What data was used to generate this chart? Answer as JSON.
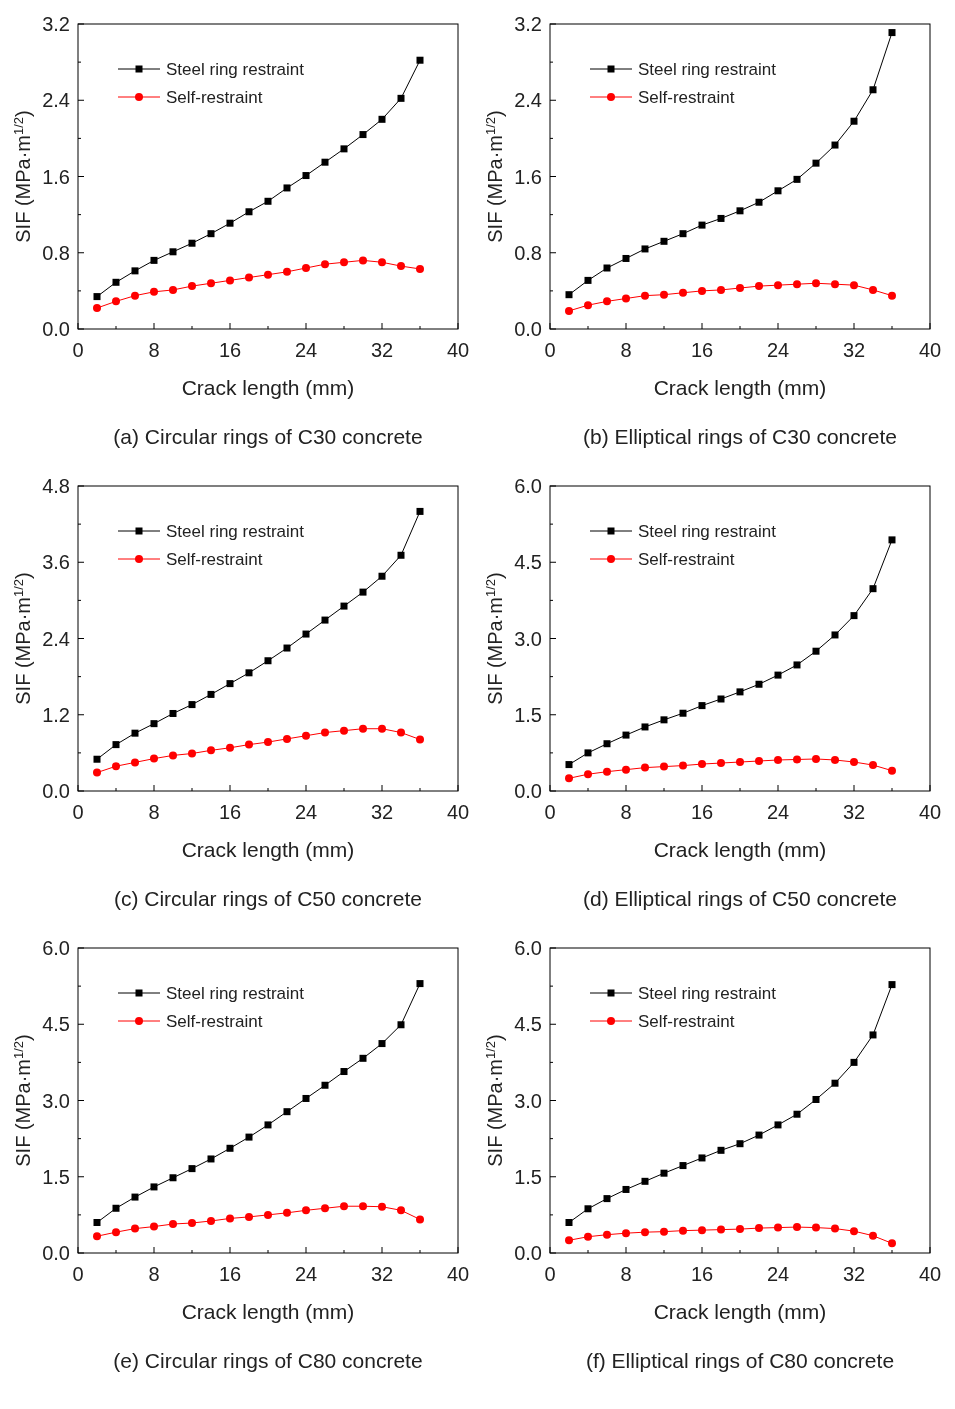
{
  "chart_data": [
    {
      "type": "line",
      "title": "(a) Circular rings of C30 concrete",
      "xlabel": "Crack length (mm)",
      "ylabel": "SIF (MPa·m$^{1/2}$)",
      "x": [
        2,
        4,
        6,
        8,
        10,
        12,
        14,
        16,
        18,
        20,
        22,
        24,
        26,
        28,
        30,
        32,
        34,
        36
      ],
      "xlim": [
        0,
        40
      ],
      "xticks": [
        0,
        {
          "value": 4,
          "label": null
        },
        8,
        {
          "value": 12,
          "label": null
        },
        16,
        {
          "value": 20,
          "label": null
        },
        24,
        {
          "value": 28,
          "label": null
        },
        32,
        {
          "value": 36,
          "label": null
        },
        40
      ],
      "ylim": [
        0,
        3.2
      ],
      "yticks": [
        {
          "value": 0,
          "label": "0.0"
        },
        {
          "value": 0.4,
          "label": null
        },
        0.8,
        {
          "value": 1.2,
          "label": null
        },
        1.6,
        {
          "value": 2,
          "label": null
        },
        2.4,
        {
          "value": 2.8,
          "label": null
        },
        3.2
      ],
      "legend": "top left",
      "grid": false,
      "series": [
        {
          "name": "Steel ring restraint",
          "color": "#000000",
          "marker": "square",
          "values": [
            0.34,
            0.49,
            0.61,
            0.72,
            0.81,
            0.9,
            1.0,
            1.11,
            1.23,
            1.34,
            1.48,
            1.61,
            1.75,
            1.89,
            2.04,
            2.2,
            2.42,
            2.82
          ]
        },
        {
          "name": "Self-restraint",
          "color": "#ff0000",
          "marker": "circle",
          "values": [
            0.22,
            0.29,
            0.35,
            0.39,
            0.41,
            0.45,
            0.48,
            0.51,
            0.54,
            0.57,
            0.6,
            0.64,
            0.68,
            0.7,
            0.72,
            0.7,
            0.66,
            0.63
          ]
        }
      ]
    },
    {
      "type": "line",
      "title": "(b) Elliptical rings of C30 concrete",
      "xlabel": "Crack length (mm)",
      "ylabel": "SIF (MPa·m$^{1/2}$)",
      "x": [
        2,
        4,
        6,
        8,
        10,
        12,
        14,
        16,
        18,
        20,
        22,
        24,
        26,
        28,
        30,
        32,
        34,
        36
      ],
      "xlim": [
        0,
        40
      ],
      "xticks": [
        0,
        {
          "value": 4,
          "label": null
        },
        8,
        {
          "value": 12,
          "label": null
        },
        16,
        {
          "value": 20,
          "label": null
        },
        24,
        {
          "value": 28,
          "label": null
        },
        32,
        {
          "value": 36,
          "label": null
        },
        40
      ],
      "ylim": [
        0,
        3.2
      ],
      "yticks": [
        {
          "value": 0,
          "label": "0.0"
        },
        {
          "value": 0.4,
          "label": null
        },
        0.8,
        {
          "value": 1.2,
          "label": null
        },
        1.6,
        {
          "value": 2,
          "label": null
        },
        2.4,
        {
          "value": 2.8,
          "label": null
        },
        3.2
      ],
      "legend": "top left",
      "grid": false,
      "series": [
        {
          "name": "Steel ring restraint",
          "color": "#000000",
          "marker": "square",
          "values": [
            0.36,
            0.51,
            0.64,
            0.74,
            0.84,
            0.92,
            1.0,
            1.09,
            1.16,
            1.24,
            1.33,
            1.45,
            1.57,
            1.74,
            1.93,
            2.18,
            2.51,
            3.11
          ]
        },
        {
          "name": "Self-restraint",
          "color": "#ff0000",
          "marker": "circle",
          "values": [
            0.19,
            0.25,
            0.29,
            0.32,
            0.35,
            0.36,
            0.38,
            0.4,
            0.41,
            0.43,
            0.45,
            0.46,
            0.47,
            0.48,
            0.47,
            0.46,
            0.41,
            0.35
          ]
        }
      ]
    },
    {
      "type": "line",
      "title": "(c) Circular rings of C50 concrete",
      "xlabel": "Crack length (mm)",
      "ylabel": "SIF (MPa·m$^{1/2}$)",
      "x": [
        2,
        4,
        6,
        8,
        10,
        12,
        14,
        16,
        18,
        20,
        22,
        24,
        26,
        28,
        30,
        32,
        34,
        36
      ],
      "xlim": [
        0,
        40
      ],
      "xticks": [
        0,
        {
          "value": 4,
          "label": null
        },
        8,
        {
          "value": 12,
          "label": null
        },
        16,
        {
          "value": 20,
          "label": null
        },
        24,
        {
          "value": 28,
          "label": null
        },
        32,
        {
          "value": 36,
          "label": null
        },
        40
      ],
      "ylim": [
        0,
        4.8
      ],
      "yticks": [
        {
          "value": 0,
          "label": "0.0"
        },
        {
          "value": 0.6,
          "label": null
        },
        1.2,
        {
          "value": 1.8,
          "label": null
        },
        2.4,
        {
          "value": 3,
          "label": null
        },
        3.6,
        {
          "value": 4.2,
          "label": null
        },
        4.8
      ],
      "legend": "top left",
      "grid": false,
      "series": [
        {
          "name": "Steel ring restraint",
          "color": "#000000",
          "marker": "square",
          "values": [
            0.5,
            0.73,
            0.91,
            1.06,
            1.22,
            1.36,
            1.52,
            1.69,
            1.86,
            2.05,
            2.25,
            2.47,
            2.69,
            2.91,
            3.13,
            3.38,
            3.71,
            4.4
          ]
        },
        {
          "name": "Self-restraint",
          "color": "#ff0000",
          "marker": "circle",
          "values": [
            0.29,
            0.39,
            0.45,
            0.51,
            0.56,
            0.59,
            0.64,
            0.68,
            0.73,
            0.77,
            0.82,
            0.87,
            0.92,
            0.95,
            0.98,
            0.98,
            0.92,
            0.81
          ]
        }
      ]
    },
    {
      "type": "line",
      "title": "(d) Elliptical rings of C50 concrete",
      "xlabel": "Crack length (mm)",
      "ylabel": "SIF (MPa·m$^{1/2}$)",
      "x": [
        2,
        4,
        6,
        8,
        10,
        12,
        14,
        16,
        18,
        20,
        22,
        24,
        26,
        28,
        30,
        32,
        34,
        36
      ],
      "xlim": [
        0,
        40
      ],
      "xticks": [
        0,
        {
          "value": 4,
          "label": null
        },
        8,
        {
          "value": 12,
          "label": null
        },
        16,
        {
          "value": 20,
          "label": null
        },
        24,
        {
          "value": 28,
          "label": null
        },
        32,
        {
          "value": 36,
          "label": null
        },
        40
      ],
      "ylim": [
        0,
        6
      ],
      "yticks": [
        {
          "value": 0,
          "label": "0.0"
        },
        {
          "value": 0.75,
          "label": null
        },
        {
          "value": 1.5,
          "label": "1.5"
        },
        {
          "value": 2.25,
          "label": null
        },
        {
          "value": 3,
          "label": "3.0"
        },
        {
          "value": 3.75,
          "label": null
        },
        {
          "value": 4.5,
          "label": "4.5"
        },
        {
          "value": 5.25,
          "label": null
        },
        {
          "value": 6,
          "label": "6.0"
        }
      ],
      "legend": "top left",
      "grid": false,
      "series": [
        {
          "name": "Steel ring restraint",
          "color": "#000000",
          "marker": "square",
          "values": [
            0.52,
            0.75,
            0.93,
            1.1,
            1.26,
            1.4,
            1.53,
            1.68,
            1.81,
            1.95,
            2.1,
            2.28,
            2.48,
            2.75,
            3.07,
            3.45,
            3.98,
            4.94
          ]
        },
        {
          "name": "Self-restraint",
          "color": "#ff0000",
          "marker": "circle",
          "values": [
            0.25,
            0.33,
            0.38,
            0.42,
            0.46,
            0.48,
            0.5,
            0.53,
            0.55,
            0.57,
            0.59,
            0.61,
            0.62,
            0.63,
            0.61,
            0.57,
            0.51,
            0.4
          ]
        }
      ]
    },
    {
      "type": "line",
      "title": "(e) Circular rings of C80 concrete",
      "xlabel": "Crack length (mm)",
      "ylabel": "SIF (MPa·m$^{1/2}$)",
      "x": [
        2,
        4,
        6,
        8,
        10,
        12,
        14,
        16,
        18,
        20,
        22,
        24,
        26,
        28,
        30,
        32,
        34,
        36
      ],
      "xlim": [
        0,
        40
      ],
      "xticks": [
        0,
        {
          "value": 4,
          "label": null
        },
        8,
        {
          "value": 12,
          "label": null
        },
        16,
        {
          "value": 20,
          "label": null
        },
        24,
        {
          "value": 28,
          "label": null
        },
        32,
        {
          "value": 36,
          "label": null
        },
        40
      ],
      "ylim": [
        0,
        6
      ],
      "yticks": [
        {
          "value": 0,
          "label": "0.0"
        },
        {
          "value": 0.75,
          "label": null
        },
        {
          "value": 1.5,
          "label": "1.5"
        },
        {
          "value": 2.25,
          "label": null
        },
        {
          "value": 3,
          "label": "3.0"
        },
        {
          "value": 3.75,
          "label": null
        },
        {
          "value": 4.5,
          "label": "4.5"
        },
        {
          "value": 5.25,
          "label": null
        },
        {
          "value": 6,
          "label": "6.0"
        }
      ],
      "legend": "top left",
      "grid": false,
      "series": [
        {
          "name": "Steel ring restraint",
          "color": "#000000",
          "marker": "square",
          "values": [
            0.6,
            0.88,
            1.1,
            1.3,
            1.48,
            1.66,
            1.85,
            2.06,
            2.28,
            2.52,
            2.78,
            3.04,
            3.3,
            3.57,
            3.83,
            4.12,
            4.49,
            5.3
          ]
        },
        {
          "name": "Self-restraint",
          "color": "#ff0000",
          "marker": "circle",
          "values": [
            0.33,
            0.41,
            0.48,
            0.52,
            0.57,
            0.59,
            0.63,
            0.68,
            0.71,
            0.75,
            0.79,
            0.84,
            0.88,
            0.92,
            0.92,
            0.91,
            0.84,
            0.66
          ]
        }
      ]
    },
    {
      "type": "line",
      "title": "(f) Elliptical rings of C80 concrete",
      "xlabel": "Crack length (mm)",
      "ylabel": "SIF (MPa·m$^{1/2}$)",
      "x": [
        2,
        4,
        6,
        8,
        10,
        12,
        14,
        16,
        18,
        20,
        22,
        24,
        26,
        28,
        30,
        32,
        34,
        36
      ],
      "xlim": [
        0,
        40
      ],
      "xticks": [
        0,
        {
          "value": 4,
          "label": null
        },
        8,
        {
          "value": 12,
          "label": null
        },
        16,
        {
          "value": 20,
          "label": null
        },
        24,
        {
          "value": 28,
          "label": null
        },
        32,
        {
          "value": 36,
          "label": null
        },
        40
      ],
      "ylim": [
        0,
        6
      ],
      "yticks": [
        {
          "value": 0,
          "label": "0.0"
        },
        {
          "value": 0.75,
          "label": null
        },
        {
          "value": 1.5,
          "label": "1.5"
        },
        {
          "value": 2.25,
          "label": null
        },
        {
          "value": 3,
          "label": "3.0"
        },
        {
          "value": 3.75,
          "label": null
        },
        {
          "value": 4.5,
          "label": "4.5"
        },
        {
          "value": 5.25,
          "label": null
        },
        {
          "value": 6,
          "label": "6.0"
        }
      ],
      "legend": "top left",
      "grid": false,
      "series": [
        {
          "name": "Steel ring restraint",
          "color": "#000000",
          "marker": "square",
          "values": [
            0.6,
            0.87,
            1.07,
            1.25,
            1.41,
            1.57,
            1.72,
            1.87,
            2.02,
            2.15,
            2.32,
            2.52,
            2.73,
            3.02,
            3.34,
            3.75,
            4.29,
            5.28
          ]
        },
        {
          "name": "Self-restraint",
          "color": "#ff0000",
          "marker": "circle",
          "values": [
            0.25,
            0.32,
            0.36,
            0.39,
            0.41,
            0.42,
            0.44,
            0.45,
            0.46,
            0.47,
            0.49,
            0.5,
            0.51,
            0.5,
            0.48,
            0.43,
            0.34,
            0.19
          ]
        }
      ]
    }
  ]
}
